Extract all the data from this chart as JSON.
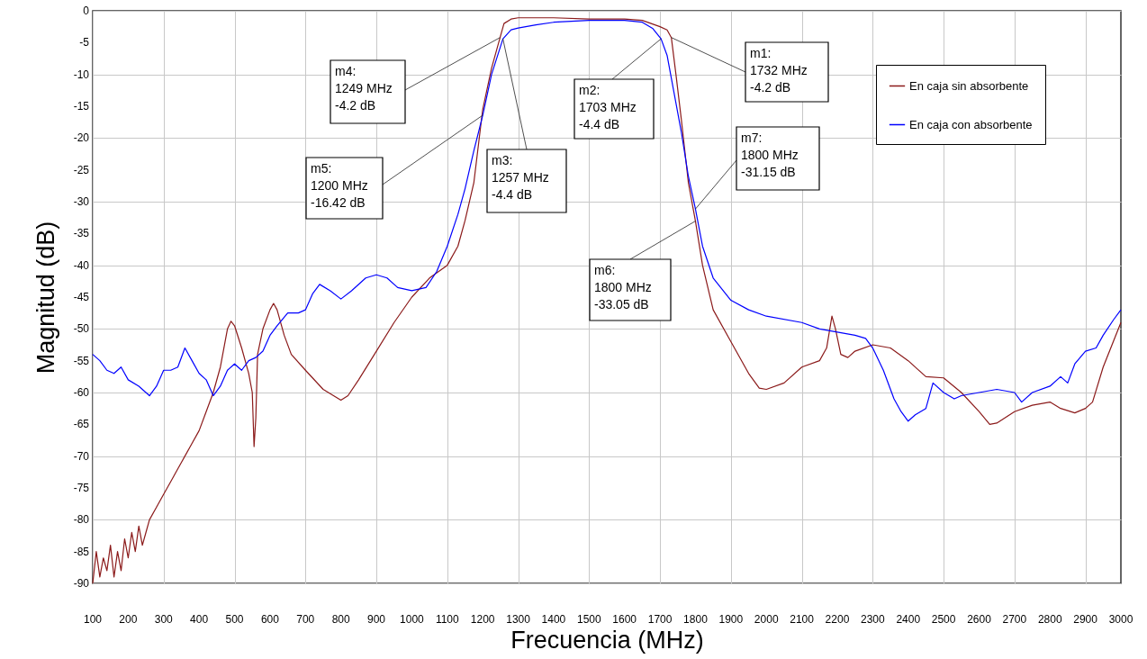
{
  "chart_data": {
    "type": "line",
    "xlabel": "Frecuencia (MHz)",
    "ylabel": "Magnitud (dB)",
    "xlim": [
      100,
      3000
    ],
    "ylim": [
      -90,
      0
    ],
    "xticks": [
      100,
      200,
      300,
      400,
      500,
      600,
      700,
      800,
      900,
      1000,
      1100,
      1200,
      1300,
      1400,
      1500,
      1600,
      1700,
      1800,
      1900,
      2000,
      2100,
      2200,
      2300,
      2400,
      2500,
      2600,
      2700,
      2800,
      2900,
      3000
    ],
    "yticks": [
      0,
      -5,
      -10,
      -15,
      -20,
      -25,
      -30,
      -35,
      -40,
      -45,
      -50,
      -55,
      -60,
      -65,
      -70,
      -75,
      -80,
      -85,
      -90
    ],
    "grid": true,
    "legend": "top right",
    "marker": "none",
    "line_style": "solid",
    "series": [
      {
        "name": "En caja sin absorbente",
        "color": "#8b1a1a",
        "x": [
          100,
          110,
          120,
          130,
          140,
          150,
          160,
          170,
          180,
          190,
          200,
          210,
          220,
          230,
          240,
          250,
          260,
          280,
          300,
          320,
          340,
          360,
          380,
          400,
          420,
          440,
          460,
          480,
          490,
          500,
          520,
          540,
          550,
          555,
          560,
          565,
          580,
          600,
          610,
          620,
          640,
          660,
          700,
          750,
          800,
          820,
          850,
          900,
          950,
          1000,
          1050,
          1100,
          1130,
          1150,
          1175,
          1200,
          1225,
          1249,
          1260,
          1280,
          1300,
          1400,
          1500,
          1600,
          1650,
          1700,
          1720,
          1732,
          1745,
          1760,
          1780,
          1800,
          1820,
          1850,
          1900,
          1950,
          1980,
          2000,
          2050,
          2100,
          2150,
          2170,
          2185,
          2195,
          2210,
          2230,
          2250,
          2300,
          2350,
          2400,
          2450,
          2500,
          2550,
          2600,
          2630,
          2650,
          2700,
          2750,
          2800,
          2830,
          2870,
          2900,
          2920,
          2950,
          3000
        ],
        "values": [
          -90,
          -85,
          -89,
          -86,
          -88,
          -84,
          -89,
          -85,
          -88,
          -83,
          -86,
          -82,
          -85,
          -81,
          -84,
          -82,
          -80,
          -78,
          -76,
          -74,
          -72,
          -70,
          -68,
          -66,
          -63,
          -60,
          -56,
          -50,
          -48.8,
          -49.5,
          -53,
          -57,
          -60,
          -68.5,
          -64,
          -54,
          -50,
          -47,
          -46,
          -47,
          -51,
          -54,
          -56.5,
          -59.5,
          -61.2,
          -60.5,
          -58,
          -53.5,
          -49,
          -45,
          -42,
          -40,
          -37,
          -33,
          -27,
          -15.5,
          -9,
          -4.2,
          -2,
          -1.3,
          -1.1,
          -1.1,
          -1.3,
          -1.3,
          -1.5,
          -2.5,
          -3,
          -4.2,
          -10,
          -17,
          -27,
          -33.05,
          -40,
          -47,
          -52,
          -57,
          -59.3,
          -59.5,
          -58.5,
          -56,
          -55,
          -53,
          -48,
          -50,
          -54,
          -54.5,
          -53.5,
          -52.5,
          -53,
          -55,
          -57.5,
          -57.7,
          -60,
          -63,
          -65,
          -64.8,
          -63,
          -62,
          -61.5,
          -62.5,
          -63.2,
          -62.5,
          -61.5,
          -56,
          -49
        ]
      },
      {
        "name": "En caja con absorbente",
        "color": "#0000ff",
        "x": [
          100,
          120,
          140,
          160,
          180,
          200,
          230,
          260,
          280,
          300,
          320,
          340,
          360,
          380,
          400,
          420,
          440,
          460,
          480,
          500,
          520,
          540,
          560,
          580,
          600,
          620,
          650,
          680,
          700,
          720,
          740,
          770,
          800,
          830,
          870,
          900,
          930,
          960,
          1000,
          1040,
          1070,
          1100,
          1130,
          1150,
          1175,
          1200,
          1225,
          1257,
          1280,
          1300,
          1350,
          1400,
          1500,
          1600,
          1650,
          1680,
          1703,
          1720,
          1740,
          1760,
          1780,
          1800,
          1820,
          1850,
          1900,
          1950,
          2000,
          2100,
          2150,
          2200,
          2250,
          2280,
          2300,
          2330,
          2360,
          2380,
          2400,
          2420,
          2450,
          2470,
          2500,
          2530,
          2550,
          2600,
          2650,
          2700,
          2720,
          2750,
          2800,
          2830,
          2850,
          2870,
          2900,
          2930,
          2950,
          2980,
          3000
        ],
        "values": [
          -54,
          -55,
          -56.5,
          -57,
          -56,
          -58,
          -59,
          -60.5,
          -59,
          -56.5,
          -56.5,
          -56,
          -53,
          -55,
          -57,
          -58,
          -60.5,
          -59,
          -56.5,
          -55.5,
          -56.5,
          -55,
          -54.5,
          -53.5,
          -51,
          -49.5,
          -47.5,
          -47.5,
          -47,
          -44.5,
          -43,
          -44,
          -45.3,
          -44,
          -42,
          -41.5,
          -42,
          -43.5,
          -44,
          -43.5,
          -41,
          -37,
          -32,
          -28,
          -22,
          -16.42,
          -10,
          -4.4,
          -3,
          -2.7,
          -2.2,
          -1.8,
          -1.5,
          -1.5,
          -1.8,
          -2.8,
          -4.4,
          -7,
          -13,
          -19,
          -26,
          -31.15,
          -37,
          -42,
          -45.5,
          -47,
          -48,
          -49,
          -50,
          -50.5,
          -51,
          -51.5,
          -53,
          -56.5,
          -61,
          -63,
          -64.5,
          -63.5,
          -62.5,
          -58.5,
          -60,
          -61,
          -60.5,
          -60,
          -59.5,
          -60,
          -61.5,
          -60,
          -59,
          -57.5,
          -58.5,
          -55.5,
          -53.5,
          -53,
          -51,
          -48.5,
          -47
        ]
      }
    ],
    "annotations": [
      {
        "text": "m1:\n1732 MHz\n-4.2 dB",
        "x": 1732,
        "y": -4.2
      },
      {
        "text": "m2:\n1703 MHz\n-4.4 dB",
        "x": 1703,
        "y": -4.4
      },
      {
        "text": "m3:\n1257 MHz\n-4.4 dB",
        "x": 1257,
        "y": -4.4
      },
      {
        "text": "m4:\n1249 MHz\n-4.2 dB",
        "x": 1249,
        "y": -4.2
      },
      {
        "text": "m5:\n1200 MHz\n-16.42 dB",
        "x": 1200,
        "y": -16.42
      },
      {
        "text": "m6:\n1800 MHz\n-33.05 dB",
        "x": 1800,
        "y": -33.05
      },
      {
        "text": "m7:\n1800 MHz\n-31.15 dB",
        "x": 1800,
        "y": -31.15
      }
    ]
  }
}
